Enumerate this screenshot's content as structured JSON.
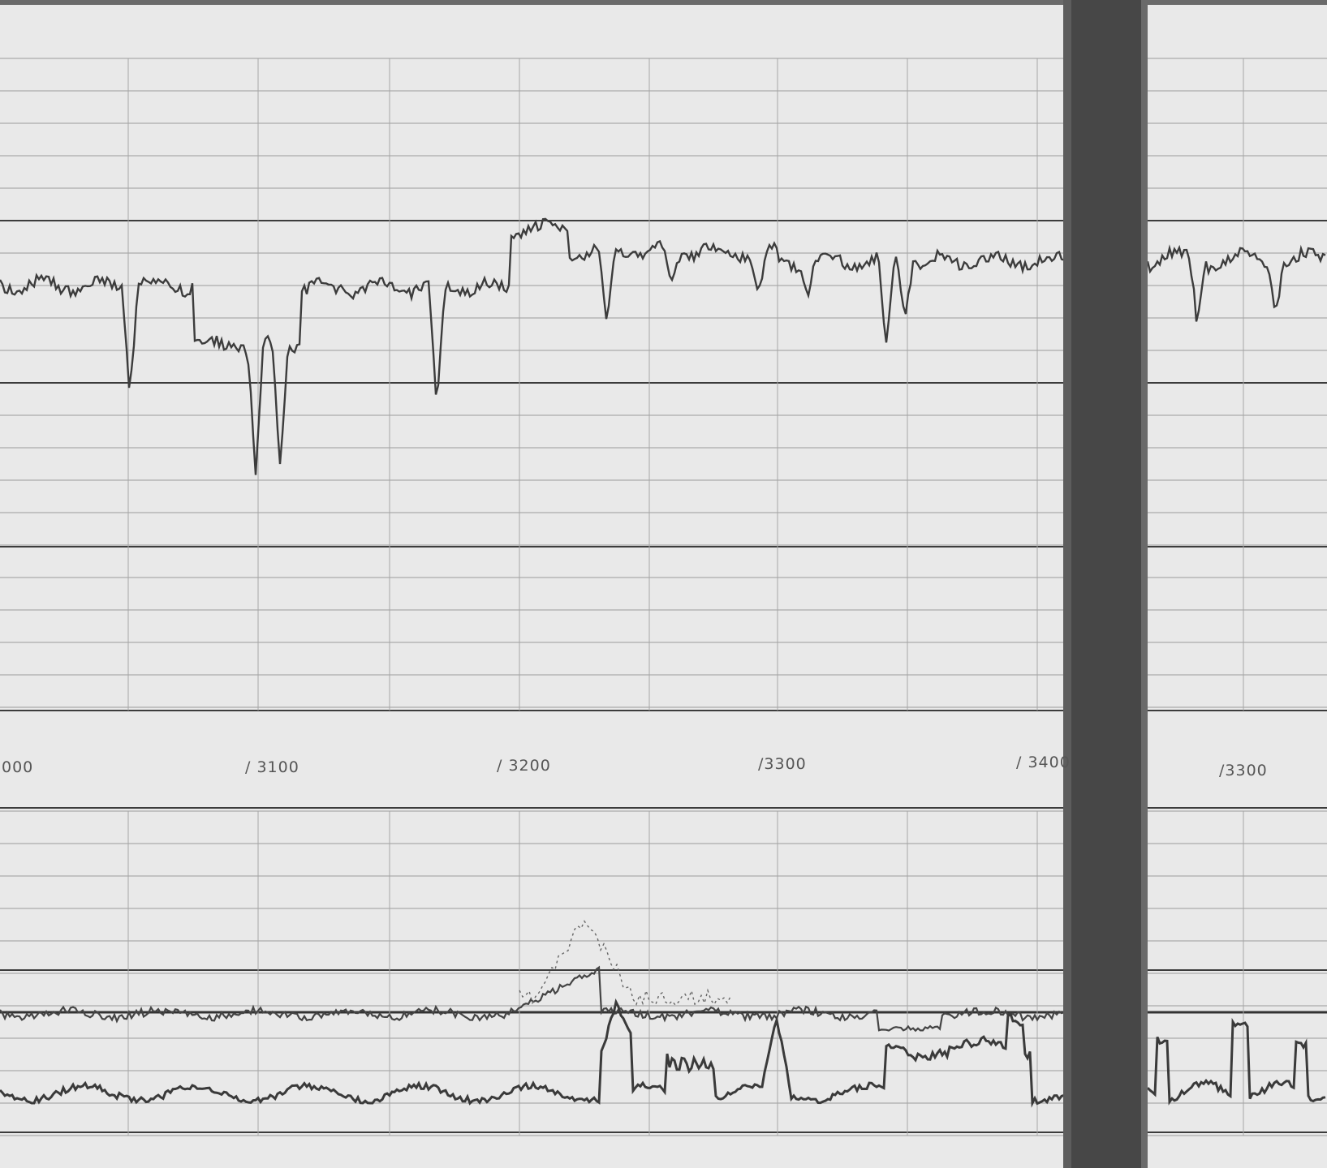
{
  "record": {
    "background": "#e6e6e6",
    "paper_color": "#ececec",
    "grid_color": "#9a9a9a",
    "major_line_color": "#3c3c3c",
    "trace_color": "#444444",
    "seam_color": "#474747"
  },
  "scale_labels": {
    "left_sheet": [
      "000",
      "3100",
      "3200",
      "3300",
      "3400"
    ],
    "right_sheet": [
      "3300"
    ]
  }
}
